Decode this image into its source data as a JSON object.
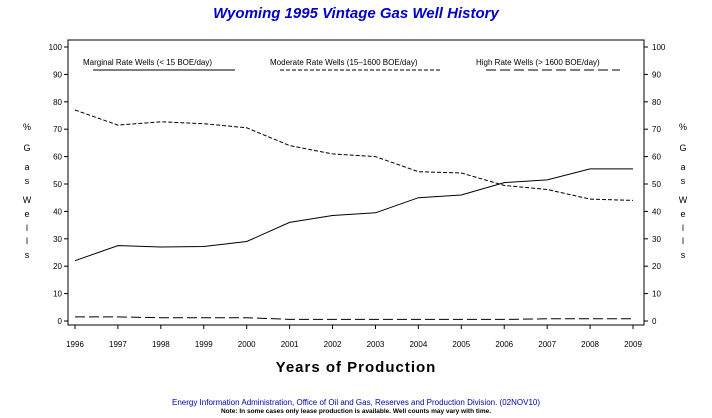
{
  "chart_data": {
    "type": "line",
    "title": "Wyoming 1995 Vintage Gas Well History",
    "xlabel": "Years of Production",
    "ylabel": [
      "%",
      "G",
      "a",
      "s",
      "W",
      "e",
      "l",
      "l",
      "s"
    ],
    "x": [
      "1996",
      "1997",
      "1998",
      "1999",
      "2000",
      "2001",
      "2002",
      "2003",
      "2004",
      "2005",
      "2006",
      "2007",
      "2008",
      "2009"
    ],
    "yticks": [
      "0",
      "10",
      "20",
      "30",
      "40",
      "50",
      "60",
      "70",
      "80",
      "90",
      "100"
    ],
    "ylim": [
      0,
      100
    ],
    "series": [
      {
        "name": "Marginal Rate Wells (<  15 BOE/day)",
        "style": "solid",
        "values": [
          22,
          27.5,
          27,
          27.2,
          29,
          36,
          38.5,
          39.5,
          45,
          46,
          50.5,
          51.5,
          55.5,
          55.5
        ]
      },
      {
        "name": "Moderate Rate Wells (15–1600 BOE/day)",
        "style": "short-dash",
        "values": [
          77,
          71.5,
          72.7,
          72,
          70.5,
          64,
          61,
          60,
          54.5,
          54,
          49.5,
          48,
          44.5,
          44
        ]
      },
      {
        "name": "High Rate Wells (> 1600 BOE/day)",
        "style": "long-dash",
        "values": [
          1.5,
          1.5,
          1.2,
          1.2,
          1.2,
          0.6,
          0.6,
          0.6,
          0.6,
          0.6,
          0.6,
          0.8,
          0.8,
          0.8
        ]
      }
    ],
    "legend_position": "top"
  },
  "footer": "Energy Information Administration, Office of Oil and Gas, Reserves and Production Division. (02NOV10)",
  "note": "Note: In some cases only lease production is available. Well counts may vary with time.",
  "colors": {
    "title": "#0000cc",
    "footer": "#0000aa",
    "axis": "#000000"
  }
}
